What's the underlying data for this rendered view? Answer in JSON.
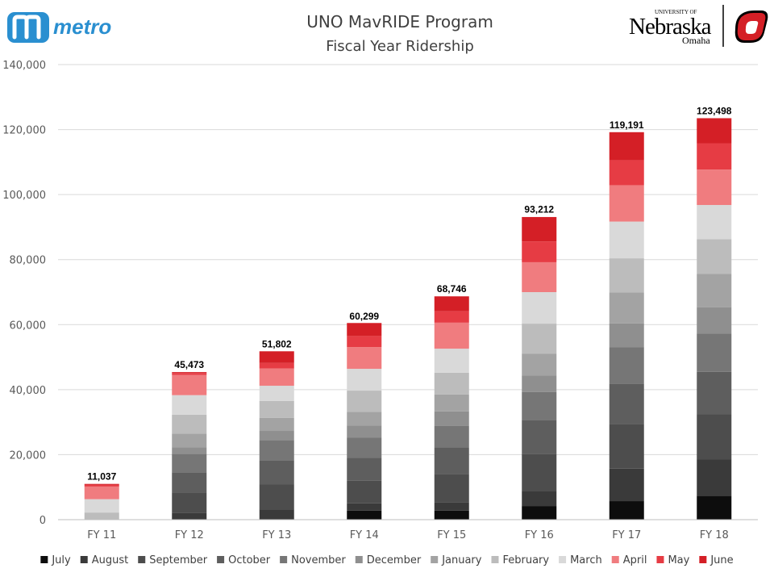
{
  "header": {
    "logo_left_text": "metro",
    "logo_right_small": "UNIVERSITY OF",
    "logo_right_main": "Nebraska",
    "logo_right_sub": "Omaha"
  },
  "chart_data": {
    "type": "bar",
    "stacked": true,
    "title": "UNO MavRIDE Program",
    "subtitle": "Fiscal Year Ridership",
    "categories": [
      "FY 11",
      "FY 12",
      "FY 13",
      "FY 14",
      "FY 15",
      "FY 16",
      "FY 17",
      "FY 18"
    ],
    "totals": [
      11037,
      45473,
      51802,
      60299,
      68746,
      93212,
      119191,
      123498
    ],
    "totals_labels": [
      "11,037",
      "45,473",
      "51,802",
      "60,299",
      "68,746",
      "93,212",
      "119,191",
      "123,498"
    ],
    "ylim": [
      0,
      140000
    ],
    "yticks": [
      0,
      20000,
      40000,
      60000,
      80000,
      100000,
      120000,
      140000
    ],
    "ytick_labels": [
      "0",
      "20,000",
      "40,000",
      "60,000",
      "80,000",
      "100,000",
      "120,000",
      "140,000"
    ],
    "grid": true,
    "legend_position": "bottom",
    "series": [
      {
        "name": "July",
        "color": "#0d0d0d",
        "values": [
          0,
          0,
          0,
          2800,
          2800,
          4200,
          5700,
          7300
        ]
      },
      {
        "name": "August",
        "color": "#3a3a3a",
        "values": [
          0,
          2000,
          3200,
          2200,
          2600,
          4700,
          10000,
          11300
        ]
      },
      {
        "name": "September",
        "color": "#4d4d4d",
        "values": [
          0,
          6300,
          7600,
          7000,
          8600,
          11300,
          13600,
          13800
        ]
      },
      {
        "name": "October",
        "color": "#5e5e5e",
        "values": [
          0,
          6200,
          7500,
          7000,
          8200,
          10500,
          12500,
          13100
        ]
      },
      {
        "name": "November",
        "color": "#767676",
        "values": [
          0,
          5800,
          6200,
          6200,
          6600,
          8600,
          11200,
          11800
        ]
      },
      {
        "name": "December",
        "color": "#8f8f8f",
        "values": [
          0,
          2000,
          2800,
          3800,
          4500,
          5000,
          7400,
          8000
        ]
      },
      {
        "name": "January",
        "color": "#a3a3a3",
        "values": [
          0,
          4200,
          4000,
          4200,
          5200,
          6800,
          9500,
          10300
        ]
      },
      {
        "name": "February",
        "color": "#bcbcbc",
        "values": [
          2200,
          5800,
          5200,
          6500,
          6700,
          9200,
          10500,
          10700
        ]
      },
      {
        "name": "March",
        "color": "#d9d9d9",
        "values": [
          4100,
          6000,
          4700,
          6700,
          7400,
          9700,
          11300,
          10500
        ]
      },
      {
        "name": "April",
        "color": "#f07c7f",
        "values": [
          3900,
          6200,
          5300,
          6700,
          8000,
          9200,
          11200,
          10900
        ]
      },
      {
        "name": "May",
        "color": "#e63c44",
        "values": [
          500,
          600,
          1700,
          3400,
          3500,
          6400,
          7700,
          8100
        ]
      },
      {
        "name": "June",
        "color": "#d41f26",
        "values": [
          300,
          300,
          3600,
          4000,
          4600,
          7500,
          8600,
          7700
        ]
      }
    ]
  }
}
